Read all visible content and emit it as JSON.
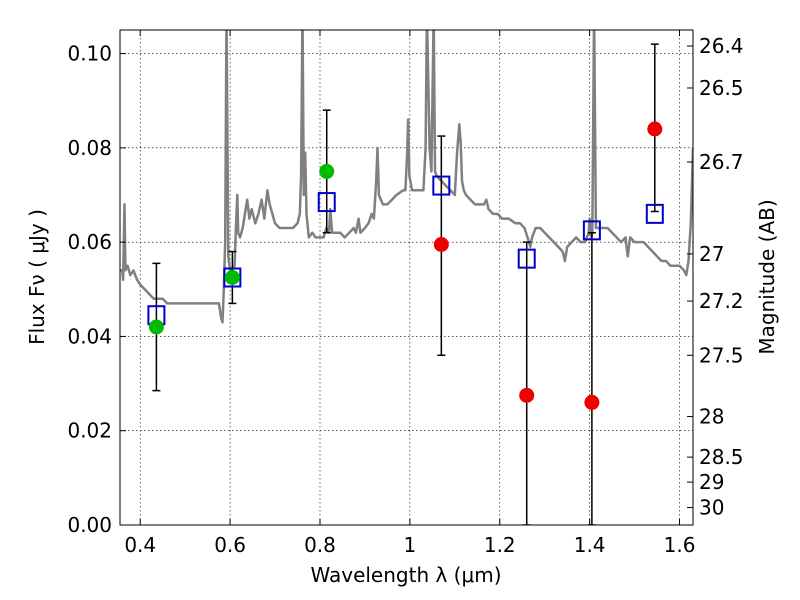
{
  "chart_data": {
    "type": "scatter",
    "xlabel": "Wavelength  λ (μm)",
    "ylabel": "Flux  Fν  ( μJy )",
    "ylabel_right": "Magnitude (AB)",
    "xlim": [
      0.355,
      1.63
    ],
    "ylim": [
      0.0,
      0.105
    ],
    "grid": true,
    "x_ticks": [
      0.4,
      0.6,
      0.8,
      1.0,
      1.2,
      1.4,
      1.6
    ],
    "x_tick_labels": [
      "0.4",
      "0.6",
      "0.8",
      "1",
      "1.2",
      "1.4",
      "1.6"
    ],
    "y_ticks": [
      0.0,
      0.02,
      0.04,
      0.06,
      0.08,
      0.1
    ],
    "y_tick_labels": [
      "0.00",
      "0.02",
      "0.04",
      "0.06",
      "0.08",
      "0.10"
    ],
    "right_ticks": [
      {
        "flux": 0.1016,
        "label": "26.4"
      },
      {
        "flux": 0.0927,
        "label": "26.5"
      },
      {
        "flux": 0.077,
        "label": "26.7"
      },
      {
        "flux": 0.0575,
        "label": "27"
      },
      {
        "flux": 0.0475,
        "label": "27.2"
      },
      {
        "flux": 0.036,
        "label": "27.5"
      },
      {
        "flux": 0.023,
        "label": "28"
      },
      {
        "flux": 0.0144,
        "label": "28.5"
      },
      {
        "flux": 0.0091,
        "label": "29"
      },
      {
        "flux": 0.0037,
        "label": "30"
      }
    ],
    "series": [
      {
        "type": "line",
        "color": "#808080",
        "points": [
          [
            0.355,
            0.054
          ],
          [
            0.36,
            0.054
          ],
          [
            0.362,
            0.052
          ],
          [
            0.365,
            0.068
          ],
          [
            0.367,
            0.054
          ],
          [
            0.372,
            0.055
          ],
          [
            0.378,
            0.053
          ],
          [
            0.385,
            0.054
          ],
          [
            0.393,
            0.052
          ],
          [
            0.4,
            0.051
          ],
          [
            0.41,
            0.05
          ],
          [
            0.42,
            0.049
          ],
          [
            0.43,
            0.048
          ],
          [
            0.44,
            0.048
          ],
          [
            0.45,
            0.048
          ],
          [
            0.46,
            0.047
          ],
          [
            0.48,
            0.047
          ],
          [
            0.5,
            0.047
          ],
          [
            0.52,
            0.047
          ],
          [
            0.54,
            0.047
          ],
          [
            0.56,
            0.047
          ],
          [
            0.575,
            0.047
          ],
          [
            0.58,
            0.044
          ],
          [
            0.583,
            0.043
          ],
          [
            0.586,
            0.05
          ],
          [
            0.589,
            0.06
          ],
          [
            0.592,
            0.109
          ],
          [
            0.596,
            0.057
          ],
          [
            0.6,
            0.054
          ],
          [
            0.61,
            0.055
          ],
          [
            0.613,
            0.063
          ],
          [
            0.616,
            0.07
          ],
          [
            0.618,
            0.062
          ],
          [
            0.622,
            0.061
          ],
          [
            0.628,
            0.063
          ],
          [
            0.633,
            0.066
          ],
          [
            0.638,
            0.069
          ],
          [
            0.643,
            0.065
          ],
          [
            0.648,
            0.067
          ],
          [
            0.656,
            0.064
          ],
          [
            0.663,
            0.066
          ],
          [
            0.67,
            0.069
          ],
          [
            0.676,
            0.065
          ],
          [
            0.683,
            0.071
          ],
          [
            0.688,
            0.068
          ],
          [
            0.694,
            0.066
          ],
          [
            0.7,
            0.064
          ],
          [
            0.71,
            0.063
          ],
          [
            0.72,
            0.063
          ],
          [
            0.73,
            0.063
          ],
          [
            0.74,
            0.063
          ],
          [
            0.75,
            0.064
          ],
          [
            0.755,
            0.066
          ],
          [
            0.758,
            0.074
          ],
          [
            0.761,
            0.109
          ],
          [
            0.764,
            0.07
          ],
          [
            0.767,
            0.079
          ],
          [
            0.77,
            0.066
          ],
          [
            0.775,
            0.061
          ],
          [
            0.783,
            0.062
          ],
          [
            0.79,
            0.061
          ],
          [
            0.8,
            0.061
          ],
          [
            0.808,
            0.061
          ],
          [
            0.814,
            0.063
          ],
          [
            0.82,
            0.062
          ],
          [
            0.823,
            0.067
          ],
          [
            0.827,
            0.062
          ],
          [
            0.835,
            0.062
          ],
          [
            0.845,
            0.062
          ],
          [
            0.855,
            0.061
          ],
          [
            0.865,
            0.062
          ],
          [
            0.875,
            0.063
          ],
          [
            0.88,
            0.062
          ],
          [
            0.886,
            0.065
          ],
          [
            0.89,
            0.062
          ],
          [
            0.9,
            0.063
          ],
          [
            0.908,
            0.064
          ],
          [
            0.915,
            0.066
          ],
          [
            0.92,
            0.065
          ],
          [
            0.925,
            0.073
          ],
          [
            0.928,
            0.08
          ],
          [
            0.931,
            0.07
          ],
          [
            0.94,
            0.068
          ],
          [
            0.95,
            0.068
          ],
          [
            0.96,
            0.069
          ],
          [
            0.97,
            0.07
          ],
          [
            0.985,
            0.071
          ],
          [
            0.99,
            0.071
          ],
          [
            0.994,
            0.079
          ],
          [
            0.996,
            0.086
          ],
          [
            0.999,
            0.074
          ],
          [
            1.005,
            0.071
          ],
          [
            1.015,
            0.071
          ],
          [
            1.025,
            0.071
          ],
          [
            1.03,
            0.071
          ],
          [
            1.035,
            0.08
          ],
          [
            1.038,
            0.109
          ],
          [
            1.044,
            0.08
          ],
          [
            1.048,
            0.075
          ],
          [
            1.053,
            0.109
          ],
          [
            1.056,
            0.075
          ],
          [
            1.06,
            0.074
          ],
          [
            1.07,
            0.073
          ],
          [
            1.08,
            0.072
          ],
          [
            1.09,
            0.071
          ],
          [
            1.1,
            0.07
          ],
          [
            1.105,
            0.079
          ],
          [
            1.11,
            0.085
          ],
          [
            1.113,
            0.081
          ],
          [
            1.116,
            0.073
          ],
          [
            1.12,
            0.071
          ],
          [
            1.125,
            0.07
          ],
          [
            1.135,
            0.069
          ],
          [
            1.145,
            0.068
          ],
          [
            1.155,
            0.068
          ],
          [
            1.165,
            0.068
          ],
          [
            1.17,
            0.069
          ],
          [
            1.175,
            0.067
          ],
          [
            1.185,
            0.066
          ],
          [
            1.195,
            0.066
          ],
          [
            1.205,
            0.065
          ],
          [
            1.22,
            0.065
          ],
          [
            1.235,
            0.064
          ],
          [
            1.245,
            0.064
          ],
          [
            1.255,
            0.063
          ],
          [
            1.265,
            0.06
          ],
          [
            1.268,
            0.059
          ],
          [
            1.272,
            0.061
          ],
          [
            1.28,
            0.063
          ],
          [
            1.29,
            0.063
          ],
          [
            1.3,
            0.062
          ],
          [
            1.31,
            0.061
          ],
          [
            1.32,
            0.06
          ],
          [
            1.33,
            0.059
          ],
          [
            1.34,
            0.058
          ],
          [
            1.345,
            0.056
          ],
          [
            1.35,
            0.059
          ],
          [
            1.36,
            0.06
          ],
          [
            1.37,
            0.061
          ],
          [
            1.38,
            0.06
          ],
          [
            1.39,
            0.06
          ],
          [
            1.398,
            0.062
          ],
          [
            1.4,
            0.065
          ],
          [
            1.402,
            0.064
          ],
          [
            1.404,
            0.061
          ],
          [
            1.406,
            0.062
          ],
          [
            1.41,
            0.109
          ],
          [
            1.414,
            0.063
          ],
          [
            1.42,
            0.063
          ],
          [
            1.43,
            0.063
          ],
          [
            1.44,
            0.063
          ],
          [
            1.45,
            0.062
          ],
          [
            1.46,
            0.061
          ],
          [
            1.47,
            0.06
          ],
          [
            1.48,
            0.061
          ],
          [
            1.482,
            0.059
          ],
          [
            1.485,
            0.057
          ],
          [
            1.49,
            0.061
          ],
          [
            1.5,
            0.06
          ],
          [
            1.51,
            0.06
          ],
          [
            1.52,
            0.06
          ],
          [
            1.53,
            0.059
          ],
          [
            1.54,
            0.058
          ],
          [
            1.55,
            0.057
          ],
          [
            1.56,
            0.056
          ],
          [
            1.57,
            0.056
          ],
          [
            1.58,
            0.055
          ],
          [
            1.59,
            0.055
          ],
          [
            1.6,
            0.055
          ],
          [
            1.61,
            0.054
          ],
          [
            1.615,
            0.053
          ],
          [
            1.62,
            0.056
          ],
          [
            1.625,
            0.064
          ],
          [
            1.63,
            0.08
          ]
        ]
      },
      {
        "type": "open-square",
        "color": "#0000cc",
        "points": [
          [
            0.436,
            0.0445
          ],
          [
            0.605,
            0.0525
          ],
          [
            0.815,
            0.0685
          ],
          [
            1.07,
            0.072
          ],
          [
            1.26,
            0.0565
          ],
          [
            1.405,
            0.0625
          ],
          [
            1.545,
            0.066
          ]
        ]
      },
      {
        "type": "filled-circle",
        "color": "#00bb00",
        "points": [
          [
            0.436,
            0.042
          ],
          [
            0.605,
            0.0525
          ],
          [
            0.815,
            0.075
          ]
        ]
      },
      {
        "type": "filled-circle",
        "color": "#ee0000",
        "points": [
          [
            1.07,
            0.0595
          ],
          [
            1.26,
            0.0275
          ],
          [
            1.405,
            0.026
          ],
          [
            1.545,
            0.084
          ]
        ]
      },
      {
        "type": "errorbar",
        "color": "#000000",
        "bars": [
          {
            "x": 0.436,
            "low": 0.0285,
            "high": 0.0555
          },
          {
            "x": 0.605,
            "low": 0.047,
            "high": 0.058
          },
          {
            "x": 0.815,
            "low": 0.062,
            "high": 0.088
          },
          {
            "x": 1.07,
            "low": 0.036,
            "high": 0.0825
          },
          {
            "x": 1.26,
            "low": 0.0,
            "high": 0.06
          },
          {
            "x": 1.405,
            "low": 0.0,
            "high": 0.062
          },
          {
            "x": 1.545,
            "low": 0.0665,
            "high": 0.102
          }
        ]
      }
    ]
  }
}
